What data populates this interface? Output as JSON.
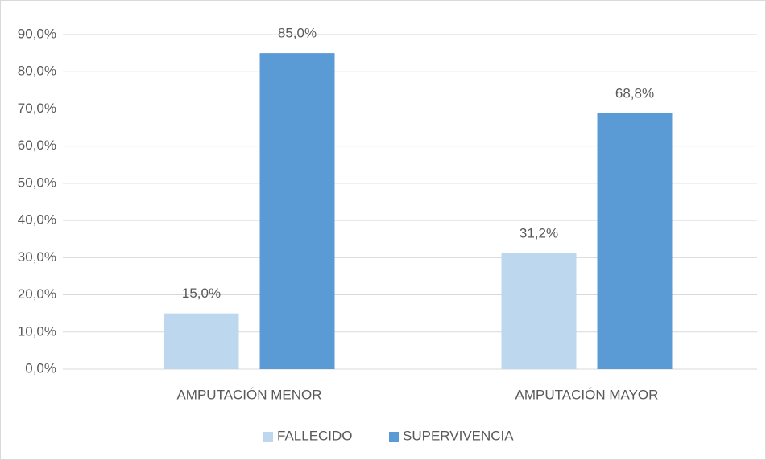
{
  "chart_data": {
    "type": "bar",
    "categories": [
      "AMPUTACIÓN MENOR",
      "AMPUTACIÓN MAYOR"
    ],
    "series": [
      {
        "name": "FALLECIDO",
        "color": "#bdd7ee",
        "values": [
          15.0,
          31.2
        ],
        "value_labels": [
          "15,0%",
          "31,2%"
        ]
      },
      {
        "name": "SUPERVIVENCIA",
        "color": "#5b9bd5",
        "values": [
          85.0,
          68.8
        ],
        "value_labels": [
          "85,0%",
          "68,8%"
        ]
      }
    ],
    "ylim": [
      0,
      90
    ],
    "yticks": [
      {
        "value": 0,
        "label": "0,0%"
      },
      {
        "value": 10,
        "label": "10,0%"
      },
      {
        "value": 20,
        "label": "20,0%"
      },
      {
        "value": 30,
        "label": "30,0%"
      },
      {
        "value": 40,
        "label": "40,0%"
      },
      {
        "value": 50,
        "label": "50,0%"
      },
      {
        "value": 60,
        "label": "60,0%"
      },
      {
        "value": 70,
        "label": "70,0%"
      },
      {
        "value": 80,
        "label": "80,0%"
      },
      {
        "value": 90,
        "label": "90,0%"
      }
    ],
    "grid": true,
    "legend": "bottom"
  }
}
